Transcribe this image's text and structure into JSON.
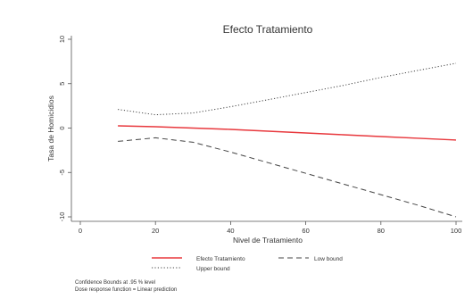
{
  "chart_data": {
    "type": "line",
    "title": "Efecto Tratamiento",
    "xlabel": "Nivel de Tratamiento",
    "ylabel": "Tasa de Homicidios",
    "xlim": [
      0,
      100
    ],
    "ylim": [
      -10,
      10
    ],
    "xticks": [
      "0",
      "20",
      "40",
      "60",
      "80",
      "100"
    ],
    "yticks": [
      "-10",
      "-5",
      "0",
      "5",
      "10"
    ],
    "grid": false,
    "legend": "bottom",
    "series": [
      {
        "name": "Efecto Tratamiento",
        "style": "solid",
        "color": "#e8383d",
        "x": [
          10,
          20,
          30,
          40,
          50,
          60,
          70,
          80,
          90,
          100
        ],
        "y": [
          0.25,
          0.15,
          0.0,
          -0.15,
          -0.35,
          -0.55,
          -0.75,
          -0.95,
          -1.15,
          -1.35
        ]
      },
      {
        "name": "Low bound",
        "style": "dashed",
        "color": "#444444",
        "x": [
          10,
          20,
          30,
          40,
          50,
          60,
          70,
          80,
          90,
          100
        ],
        "y": [
          -1.5,
          -1.1,
          -1.6,
          -2.7,
          -3.9,
          -5.1,
          -6.3,
          -7.5,
          -8.7,
          -10.0
        ]
      },
      {
        "name": "Upper bound",
        "style": "dotted",
        "color": "#444444",
        "x": [
          10,
          20,
          30,
          40,
          50,
          60,
          70,
          80,
          90,
          100
        ],
        "y": [
          2.1,
          1.5,
          1.7,
          2.4,
          3.2,
          4.0,
          4.8,
          5.7,
          6.5,
          7.3
        ]
      }
    ],
    "notes": [
      "Confidence Bounds at .95 % level",
      "Dose response function = Linear prediction"
    ]
  }
}
